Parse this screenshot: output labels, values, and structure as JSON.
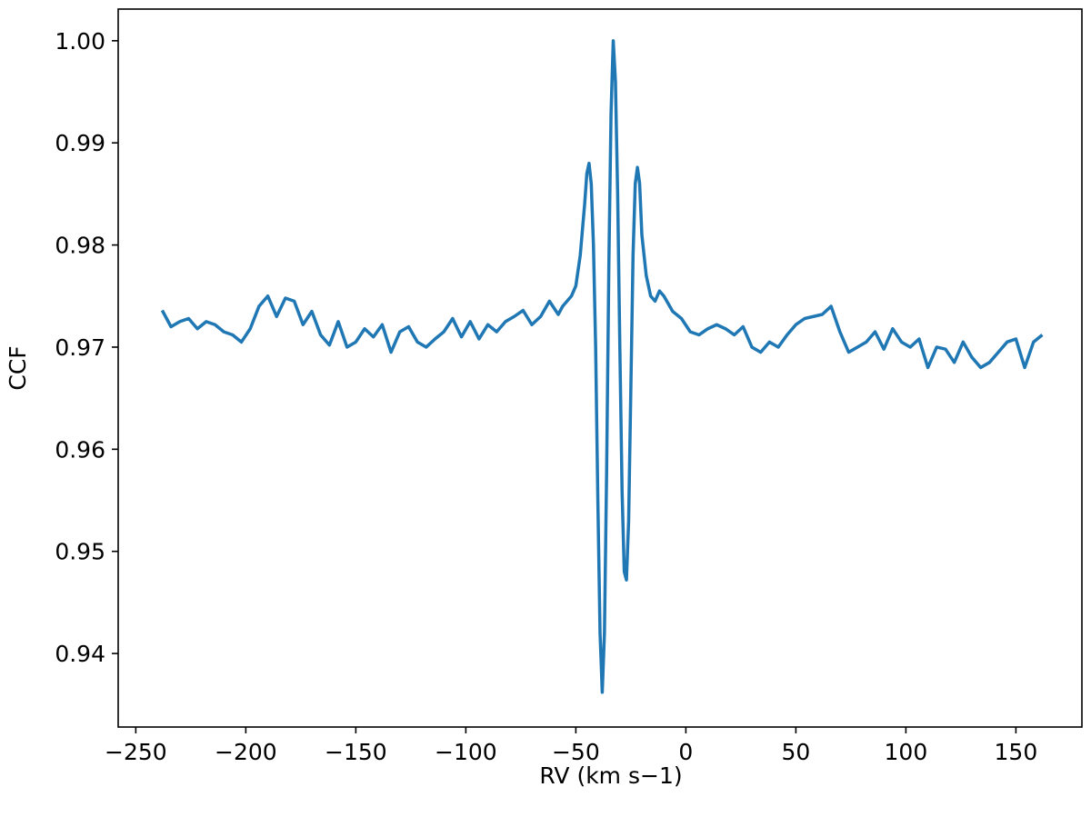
{
  "chart_data": {
    "type": "line",
    "xlabel": "RV (km s−1)",
    "ylabel": "CCF",
    "xlim": [
      -258,
      180
    ],
    "ylim": [
      0.9328,
      1.0031
    ],
    "xticks": [
      {
        "value": -250,
        "label": "−250"
      },
      {
        "value": -200,
        "label": "−200"
      },
      {
        "value": -150,
        "label": "−150"
      },
      {
        "value": -100,
        "label": "−100"
      },
      {
        "value": -50,
        "label": "−50"
      },
      0,
      50,
      100,
      150
    ],
    "yticks": [
      0.94,
      0.95,
      0.96,
      0.97,
      0.98,
      0.99,
      {
        "value": 1,
        "label": "1.00"
      }
    ],
    "color": "#1f77b4",
    "x": [
      -238,
      -234,
      -230,
      -226,
      -222,
      -218,
      -214,
      -210,
      -206,
      -202,
      -198,
      -194,
      -190,
      -186,
      -182,
      -178,
      -174,
      -170,
      -166,
      -162,
      -158,
      -154,
      -150,
      -146,
      -142,
      -138,
      -134,
      -130,
      -126,
      -122,
      -118,
      -114,
      -110,
      -106,
      -102,
      -98,
      -94,
      -90,
      -86,
      -82,
      -78,
      -74,
      -70,
      -66,
      -62,
      -58,
      -56,
      -54,
      -52,
      -50,
      -48,
      -46,
      -45,
      -44,
      -43,
      -42,
      -41,
      -40,
      -39,
      -38,
      -37,
      -36,
      -35,
      -34,
      -33,
      -32,
      -31,
      -30,
      -29,
      -28,
      -27,
      -26,
      -25,
      -24,
      -23,
      -22,
      -21,
      -20,
      -18,
      -16,
      -14,
      -12,
      -10,
      -6,
      -2,
      2,
      6,
      10,
      14,
      18,
      22,
      26,
      30,
      34,
      38,
      42,
      46,
      50,
      54,
      58,
      62,
      66,
      70,
      74,
      78,
      82,
      86,
      90,
      94,
      98,
      102,
      106,
      110,
      114,
      118,
      122,
      126,
      130,
      134,
      138,
      142,
      146,
      150,
      154,
      158,
      162
    ],
    "values": [
      0.9736,
      0.972,
      0.9725,
      0.9728,
      0.9718,
      0.9725,
      0.9722,
      0.9715,
      0.9712,
      0.9705,
      0.9718,
      0.974,
      0.975,
      0.973,
      0.9748,
      0.9745,
      0.9722,
      0.9735,
      0.9712,
      0.9702,
      0.9725,
      0.97,
      0.9705,
      0.9718,
      0.971,
      0.9722,
      0.9695,
      0.9715,
      0.972,
      0.9705,
      0.97,
      0.9708,
      0.9715,
      0.9728,
      0.971,
      0.9725,
      0.9708,
      0.9722,
      0.9715,
      0.9725,
      0.973,
      0.9736,
      0.9722,
      0.973,
      0.9745,
      0.9732,
      0.974,
      0.9745,
      0.975,
      0.976,
      0.979,
      0.984,
      0.987,
      0.988,
      0.986,
      0.98,
      0.97,
      0.955,
      0.942,
      0.9362,
      0.942,
      0.958,
      0.978,
      0.993,
      1.0,
      0.996,
      0.985,
      0.97,
      0.956,
      0.948,
      0.9472,
      0.953,
      0.966,
      0.979,
      0.986,
      0.9876,
      0.986,
      0.981,
      0.977,
      0.975,
      0.9745,
      0.9755,
      0.975,
      0.9735,
      0.9728,
      0.9715,
      0.9712,
      0.9718,
      0.9722,
      0.9718,
      0.9712,
      0.972,
      0.97,
      0.9695,
      0.9705,
      0.97,
      0.9712,
      0.9722,
      0.9728,
      0.973,
      0.9732,
      0.974,
      0.9715,
      0.9695,
      0.97,
      0.9705,
      0.9715,
      0.9698,
      0.9718,
      0.9705,
      0.97,
      0.9708,
      0.968,
      0.97,
      0.9698,
      0.9685,
      0.9705,
      0.969,
      0.968,
      0.9685,
      0.9695,
      0.9705,
      0.9708,
      0.968,
      0.9705,
      0.9712
    ]
  }
}
